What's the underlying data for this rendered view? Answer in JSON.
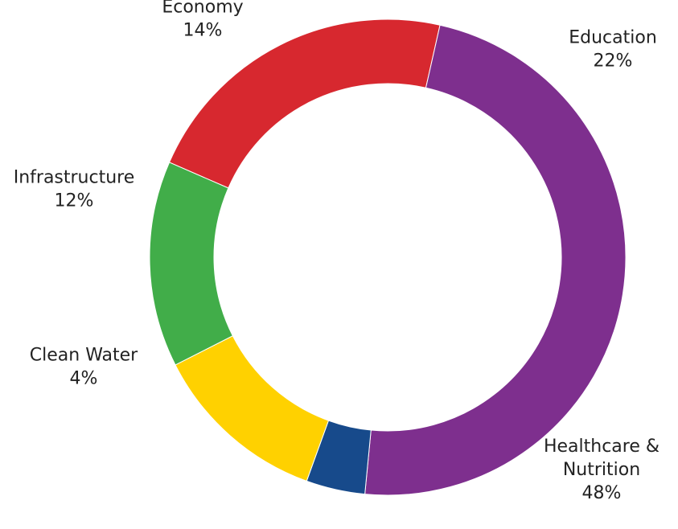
{
  "chart_data": {
    "type": "pie",
    "title": "",
    "legend": "none",
    "slices": [
      {
        "label": "Education",
        "value": 22,
        "value_label": "22%",
        "color": "#D7282F"
      },
      {
        "label": "Healthcare &\nNutrition",
        "value": 48,
        "value_label": "48%",
        "color": "#7E2F8E"
      },
      {
        "label": "Clean Water",
        "value": 4,
        "value_label": "4%",
        "color": "#174A8B"
      },
      {
        "label": "Infrastructure",
        "value": 12,
        "value_label": "12%",
        "color": "#FFD100"
      },
      {
        "label": "Economy",
        "value": 14,
        "value_label": "14%",
        "color": "#41AD49"
      }
    ]
  }
}
